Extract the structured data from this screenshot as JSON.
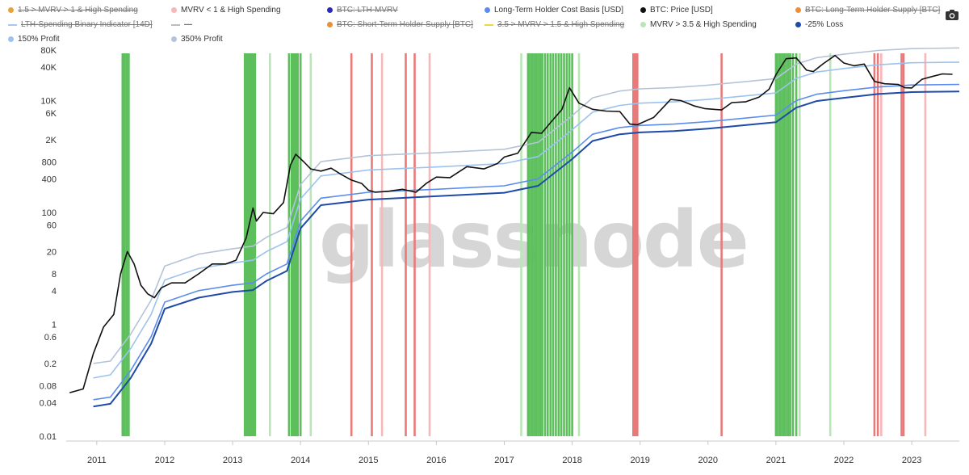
{
  "legend": [
    {
      "label": "1.5 > MVRV > 1 & High Spending",
      "color": "#e8a33a",
      "marker": "dot",
      "enabled": false
    },
    {
      "label": "MVRV < 1 & High Spending",
      "color": "#f6b8b8",
      "marker": "dot",
      "enabled": true
    },
    {
      "label": "BTC: LTH-MVRV",
      "color": "#2b2bb5",
      "marker": "dot",
      "enabled": false
    },
    {
      "label": "Long-Term Holder Cost Basis [USD]",
      "color": "#5b8def",
      "marker": "dot",
      "enabled": true
    },
    {
      "label": "BTC: Price [USD]",
      "color": "#111111",
      "marker": "dot",
      "enabled": true
    },
    {
      "label": "BTC: Long-Term Holder Supply [BTC]",
      "color": "#e8903a",
      "marker": "dot",
      "enabled": false
    },
    {
      "label": "LTH-Spending Binary Indicator [14D]",
      "color": "#a7c8f0",
      "marker": "line",
      "enabled": false
    },
    {
      "label": "---",
      "color": "#bcbcbc",
      "marker": "line",
      "enabled": false
    },
    {
      "label": "BTC: Short-Term Holder Supply [BTC]",
      "color": "#e8903a",
      "marker": "dot",
      "enabled": false
    },
    {
      "label": "3.5 > MVRV > 1.5 & High Spending",
      "color": "#e8d84a",
      "marker": "line",
      "enabled": false
    },
    {
      "label": "MVRV > 3.5 & High Spending",
      "color": "#b9e6b4",
      "marker": "dot",
      "enabled": true
    },
    {
      "label": "-25% Loss",
      "color": "#1e4aa8",
      "marker": "dot",
      "enabled": true
    },
    {
      "label": "150% Profit",
      "color": "#9cc3ef",
      "marker": "dot",
      "enabled": true
    },
    {
      "label": "350% Profit",
      "color": "#b4c4d8",
      "marker": "dot",
      "enabled": true
    }
  ],
  "toolbar": {
    "screenshot_icon": "camera-icon"
  },
  "watermark": "glassnode",
  "chart_data": {
    "type": "line",
    "title": "",
    "xlabel": "",
    "ylabel": "",
    "y_scale": "log",
    "ylim": [
      0.01,
      80000
    ],
    "xlim": [
      2010.55,
      2023.7
    ],
    "y_ticks": [
      {
        "label": "0.01",
        "value": 0.01
      },
      {
        "label": "0.04",
        "value": 0.04
      },
      {
        "label": "0.08",
        "value": 0.08
      },
      {
        "label": "0.2",
        "value": 0.2
      },
      {
        "label": "0.6",
        "value": 0.6
      },
      {
        "label": "1",
        "value": 1
      },
      {
        "label": "4",
        "value": 4
      },
      {
        "label": "8",
        "value": 8
      },
      {
        "label": "20",
        "value": 20
      },
      {
        "label": "60",
        "value": 60
      },
      {
        "label": "100",
        "value": 100
      },
      {
        "label": "400",
        "value": 400
      },
      {
        "label": "800",
        "value": 800
      },
      {
        "label": "2K",
        "value": 2000
      },
      {
        "label": "6K",
        "value": 6000
      },
      {
        "label": "10K",
        "value": 10000
      },
      {
        "label": "40K",
        "value": 40000
      },
      {
        "label": "80K",
        "value": 80000
      }
    ],
    "x_ticks": [
      {
        "label": "2011",
        "value": 2011
      },
      {
        "label": "2012",
        "value": 2012
      },
      {
        "label": "2013",
        "value": 2013
      },
      {
        "label": "2014",
        "value": 2014
      },
      {
        "label": "2015",
        "value": 2015
      },
      {
        "label": "2016",
        "value": 2016
      },
      {
        "label": "2017",
        "value": 2017
      },
      {
        "label": "2018",
        "value": 2018
      },
      {
        "label": "2019",
        "value": 2019
      },
      {
        "label": "2020",
        "value": 2020
      },
      {
        "label": "2021",
        "value": 2021
      },
      {
        "label": "2022",
        "value": 2022
      },
      {
        "label": "2023",
        "value": 2023
      }
    ],
    "grid": false,
    "legend_position": "top",
    "series": [
      {
        "name": "BTC: Price [USD]",
        "color": "#111111",
        "width": 1.6,
        "x": [
          2010.6,
          2010.8,
          2010.95,
          2011.1,
          2011.25,
          2011.35,
          2011.45,
          2011.55,
          2011.65,
          2011.75,
          2011.85,
          2011.95,
          2012.1,
          2012.3,
          2012.5,
          2012.7,
          2012.9,
          2013.05,
          2013.2,
          2013.3,
          2013.35,
          2013.45,
          2013.6,
          2013.75,
          2013.85,
          2013.93,
          2014.05,
          2014.15,
          2014.3,
          2014.45,
          2014.6,
          2014.75,
          2014.9,
          2015.0,
          2015.1,
          2015.3,
          2015.5,
          2015.7,
          2015.85,
          2016.0,
          2016.2,
          2016.45,
          2016.7,
          2016.9,
          2017.0,
          2017.2,
          2017.4,
          2017.55,
          2017.7,
          2017.85,
          2017.96,
          2018.1,
          2018.3,
          2018.5,
          2018.7,
          2018.85,
          2018.96,
          2019.2,
          2019.45,
          2019.6,
          2019.8,
          2019.95,
          2020.2,
          2020.35,
          2020.55,
          2020.75,
          2020.9,
          2021.0,
          2021.15,
          2021.3,
          2021.45,
          2021.55,
          2021.7,
          2021.87,
          2022.0,
          2022.15,
          2022.3,
          2022.45,
          2022.6,
          2022.8,
          2022.9,
          2023.0,
          2023.15,
          2023.3,
          2023.45,
          2023.6
        ],
        "y": [
          0.06,
          0.07,
          0.3,
          0.9,
          1.5,
          8,
          20,
          12,
          5,
          3.5,
          3,
          4.5,
          5.5,
          5.5,
          8,
          12,
          12,
          14,
          35,
          120,
          70,
          100,
          95,
          150,
          700,
          1100,
          800,
          600,
          550,
          620,
          480,
          380,
          330,
          250,
          230,
          240,
          260,
          230,
          330,
          430,
          420,
          660,
          600,
          750,
          980,
          1150,
          2700,
          2600,
          4300,
          7000,
          17000,
          9000,
          7000,
          6500,
          6400,
          3800,
          3700,
          5000,
          10500,
          10000,
          8000,
          7200,
          6800,
          9200,
          9500,
          11500,
          16000,
          29000,
          56000,
          58000,
          35000,
          33000,
          46000,
          64000,
          47000,
          42000,
          45000,
          22000,
          20000,
          19500,
          17000,
          16800,
          24000,
          27000,
          30000,
          29500
        ]
      },
      {
        "name": "Long-Term Holder Cost Basis [USD]",
        "color": "#5b8def",
        "width": 1.6,
        "x": [
          2010.95,
          2011.2,
          2011.5,
          2011.8,
          2012.0,
          2012.5,
          2013.0,
          2013.3,
          2013.5,
          2013.8,
          2014.0,
          2014.3,
          2015.0,
          2016.0,
          2017.0,
          2017.5,
          2018.0,
          2018.3,
          2018.7,
          2019.0,
          2019.5,
          2020.0,
          2020.5,
          2021.0,
          2021.3,
          2021.6,
          2022.0,
          2022.5,
          2023.0,
          2023.7
        ],
        "y": [
          0.045,
          0.05,
          0.15,
          0.6,
          2.5,
          4,
          5,
          5.5,
          8,
          12,
          70,
          180,
          230,
          260,
          300,
          400,
          1200,
          2500,
          3300,
          3600,
          3800,
          4200,
          4800,
          5500,
          10000,
          13000,
          15000,
          17500,
          19000,
          19500
        ]
      },
      {
        "name": "-25% Loss",
        "color": "#1e4aa8",
        "width": 2,
        "x": [
          2010.95,
          2011.2,
          2011.5,
          2011.8,
          2012.0,
          2012.5,
          2013.0,
          2013.3,
          2013.5,
          2013.8,
          2014.0,
          2014.3,
          2015.0,
          2016.0,
          2017.0,
          2017.5,
          2018.0,
          2018.3,
          2018.7,
          2019.0,
          2019.5,
          2020.0,
          2020.5,
          2021.0,
          2021.3,
          2021.6,
          2022.0,
          2022.5,
          2023.0,
          2023.7
        ],
        "y": [
          0.034,
          0.038,
          0.11,
          0.45,
          1.9,
          3,
          3.8,
          4.1,
          6,
          9,
          52,
          135,
          170,
          195,
          225,
          300,
          900,
          1900,
          2500,
          2700,
          2850,
          3150,
          3600,
          4100,
          7500,
          9800,
          11200,
          13100,
          14200,
          14600
        ]
      },
      {
        "name": "150% Profit",
        "color": "#9cc3ef",
        "width": 1.6,
        "x": [
          2010.95,
          2011.2,
          2011.5,
          2011.8,
          2012.0,
          2012.5,
          2013.0,
          2013.3,
          2013.5,
          2013.8,
          2014.0,
          2014.3,
          2015.0,
          2016.0,
          2017.0,
          2017.5,
          2018.0,
          2018.3,
          2018.7,
          2019.0,
          2019.5,
          2020.0,
          2020.5,
          2021.0,
          2021.3,
          2021.6,
          2022.0,
          2022.5,
          2023.0,
          2023.7
        ],
        "y": [
          0.11,
          0.125,
          0.37,
          1.5,
          6.2,
          10,
          12.5,
          14,
          20,
          30,
          175,
          450,
          575,
          650,
          750,
          1000,
          3000,
          6200,
          8200,
          9000,
          9500,
          10500,
          12000,
          13700,
          25000,
          32500,
          37500,
          43700,
          47500,
          48700
        ]
      },
      {
        "name": "350% Profit",
        "color": "#b4c4d8",
        "width": 1.6,
        "x": [
          2010.95,
          2011.2,
          2011.5,
          2011.8,
          2012.0,
          2012.5,
          2013.0,
          2013.3,
          2013.5,
          2013.8,
          2014.0,
          2014.3,
          2015.0,
          2016.0,
          2017.0,
          2017.5,
          2018.0,
          2018.3,
          2018.7,
          2019.0,
          2019.5,
          2020.0,
          2020.5,
          2021.0,
          2021.3,
          2021.6,
          2022.0,
          2022.5,
          2023.0,
          2023.7
        ],
        "y": [
          0.2,
          0.22,
          0.67,
          2.7,
          11,
          18,
          22.5,
          25,
          36,
          54,
          315,
          810,
          1035,
          1170,
          1350,
          1800,
          5400,
          11200,
          14800,
          16200,
          17100,
          18900,
          21600,
          24700,
          45000,
          58500,
          67500,
          78700,
          85000,
          87500
        ]
      }
    ],
    "bands": [
      {
        "name": "MVRV > 3.5 & High Spending",
        "color": "#5cbf5c",
        "x": [
          2011.38,
          2011.41,
          2011.44,
          2011.47,
          2013.18,
          2013.21,
          2013.24,
          2013.27,
          2013.3,
          2013.33,
          2013.83,
          2013.87,
          2013.9,
          2013.93,
          2013.96,
          2014.0,
          2017.35,
          2017.38,
          2017.41,
          2017.44,
          2017.47,
          2017.5,
          2017.53,
          2017.56,
          2017.6,
          2017.64,
          2017.68,
          2017.72,
          2017.76,
          2017.8,
          2017.84,
          2017.88,
          2017.92,
          2017.96,
          2018.0,
          2021.0,
          2021.03,
          2021.06,
          2021.09,
          2021.12,
          2021.15,
          2021.18,
          2021.21,
          2021.25,
          2021.3
        ]
      },
      {
        "name": "MVRV > 3.5 & High Spending (light)",
        "color": "#b9e6b4",
        "x": [
          2013.55,
          2014.15,
          2017.25,
          2018.1,
          2021.35,
          2021.8
        ]
      },
      {
        "name": "MVRV < 1 & High Spending",
        "color": "#e87a7a",
        "x": [
          2014.75,
          2015.05,
          2015.55,
          2015.68,
          2018.9,
          2018.93,
          2018.96,
          2020.2,
          2022.45,
          2022.5,
          2022.85,
          2022.88
        ]
      },
      {
        "name": "MVRV < 1 & High Spending (light)",
        "color": "#f6b8b8",
        "x": [
          2015.2,
          2015.9,
          2022.55,
          2023.2
        ]
      }
    ]
  }
}
